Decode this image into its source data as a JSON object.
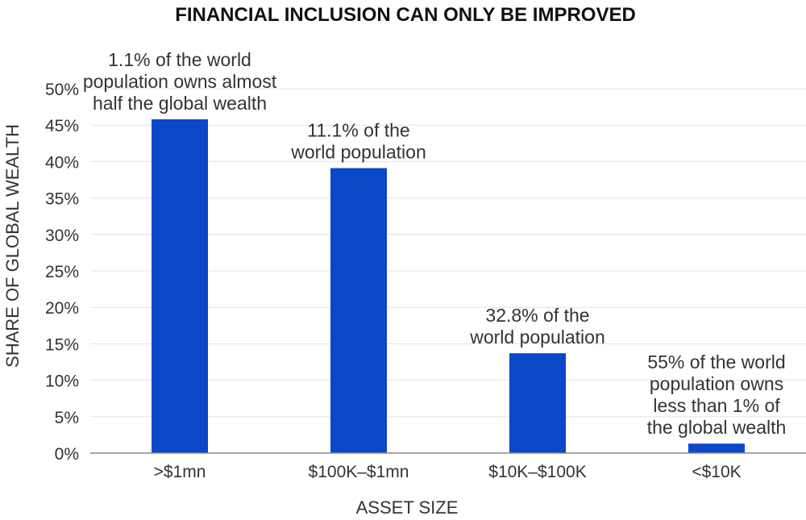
{
  "chart_data": {
    "type": "bar",
    "title": "FINANCIAL INCLUSION CAN ONLY BE IMPROVED",
    "xlabel": "ASSET SIZE",
    "ylabel": "SHARE OF GLOBAL WEALTH",
    "categories": [
      ">$1mn",
      "$100K–$1mn",
      "$10K–$100K",
      "<$10K"
    ],
    "values": [
      45.8,
      39.1,
      13.7,
      1.3
    ],
    "ylim": [
      0,
      50
    ],
    "yticks": [
      "0%",
      "5%",
      "10%",
      "15%",
      "20%",
      "25%",
      "30%",
      "35%",
      "40%",
      "45%",
      "50%"
    ],
    "grid": true,
    "bar_color": "#0b47c9",
    "annotations": [
      [
        "1.1% of the world",
        "population owns almost",
        "half the global wealth"
      ],
      [
        "11.1% of the",
        "world population"
      ],
      [
        "32.8% of the",
        "world population"
      ],
      [
        "55% of the world",
        "population owns",
        "less than 1% of",
        "the global wealth"
      ]
    ]
  }
}
